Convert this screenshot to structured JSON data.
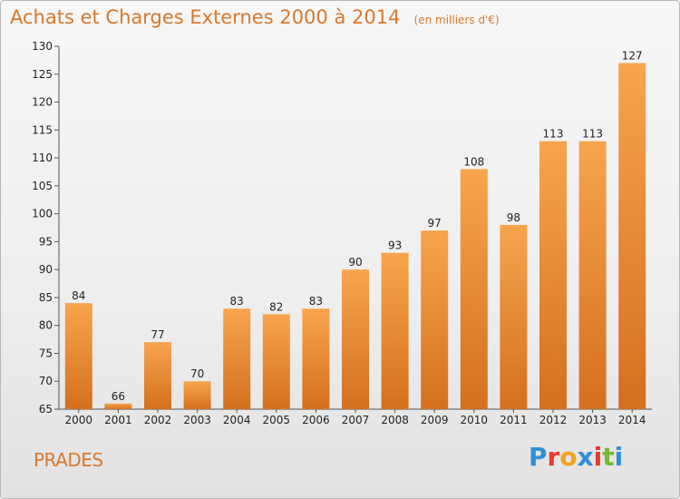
{
  "title": "Achats et Charges Externes 2000 à 2014",
  "unit": "(en milliers d'€)",
  "location": "PRADES",
  "brand": {
    "name": "Proxiti",
    "letters": [
      "P",
      "r",
      "o",
      "x",
      "i",
      "t",
      "i"
    ],
    "letter_colors": [
      "#2f8fd8",
      "#e8392e",
      "#f2a21b",
      "#2f8fd8",
      "#e8392e",
      "#77b72e",
      "#2f8fd8"
    ]
  },
  "colors": {
    "bar_top": "#f7a54d",
    "bar_bottom": "#d5701d",
    "accent": "#d9782c"
  },
  "chart_data": {
    "type": "bar",
    "title": "Achats et Charges Externes 2000 à 2014",
    "subtitle": "(en milliers d'€)",
    "xlabel": "",
    "ylabel": "",
    "categories": [
      "2000",
      "2001",
      "2002",
      "2003",
      "2004",
      "2005",
      "2006",
      "2007",
      "2008",
      "2009",
      "2010",
      "2011",
      "2012",
      "2013",
      "2014"
    ],
    "values": [
      84,
      66,
      77,
      70,
      83,
      82,
      83,
      90,
      93,
      97,
      108,
      98,
      113,
      113,
      127
    ],
    "ylim": [
      65,
      130
    ],
    "yticks": [
      65,
      70,
      75,
      80,
      85,
      90,
      95,
      100,
      105,
      110,
      115,
      120,
      125,
      130
    ],
    "grid": false,
    "legend": "none",
    "data_labels": true
  }
}
